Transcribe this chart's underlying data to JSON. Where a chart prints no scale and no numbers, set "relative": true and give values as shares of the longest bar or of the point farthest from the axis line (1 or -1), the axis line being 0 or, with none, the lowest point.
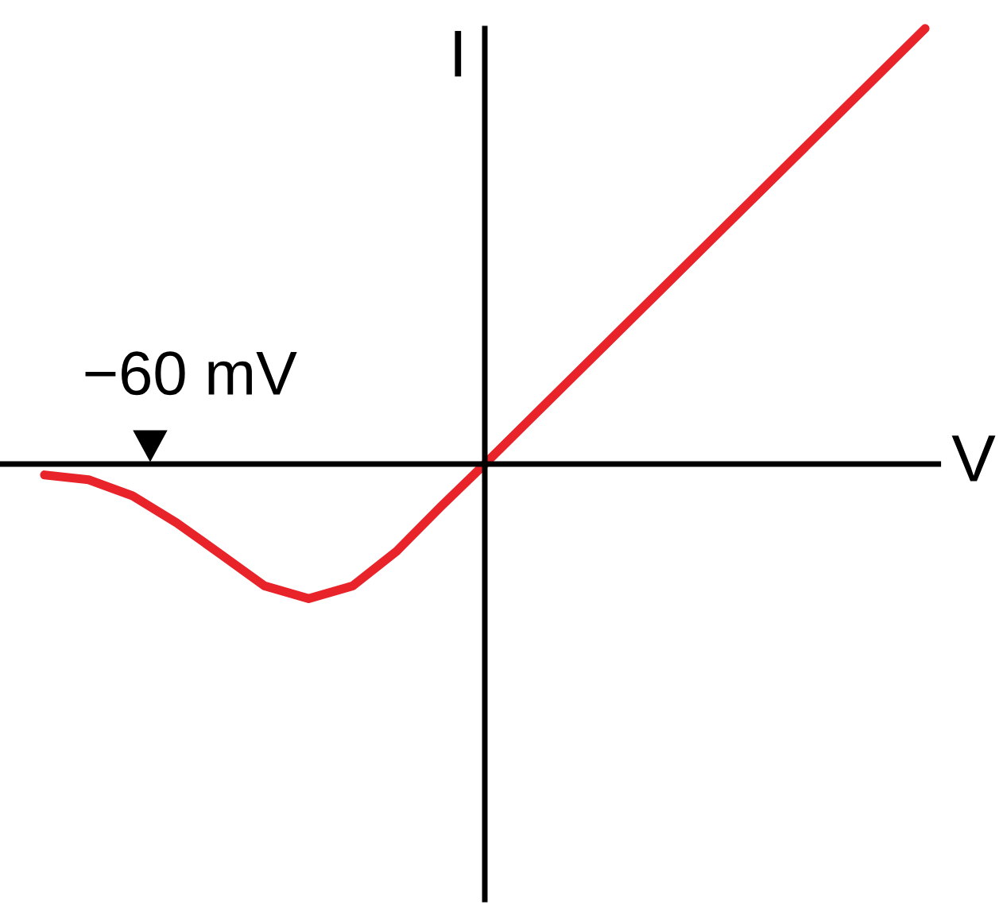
{
  "chart_data": {
    "type": "line",
    "xlabel": "V",
    "ylabel": "I",
    "relative": true,
    "categories": [
      null,
      null,
      null,
      null,
      null,
      null,
      null,
      null,
      null,
      null,
      null,
      null,
      null,
      null,
      null,
      null,
      null,
      null,
      null,
      null,
      null
    ],
    "series": [
      {
        "color": "#e8232a",
        "values": [
          -0.025,
          -0.036,
          -0.073,
          -0.135,
          -0.207,
          -0.28,
          -0.309,
          -0.28,
          -0.2,
          -0.098,
          0.0,
          0.1,
          0.2,
          0.3,
          0.4,
          0.5,
          0.6,
          0.7,
          0.8,
          0.9,
          1.0
        ]
      }
    ],
    "annotations": [
      "−60 mV"
    ],
    "legend": false,
    "marker": "none",
    "line_style": "solid"
  }
}
